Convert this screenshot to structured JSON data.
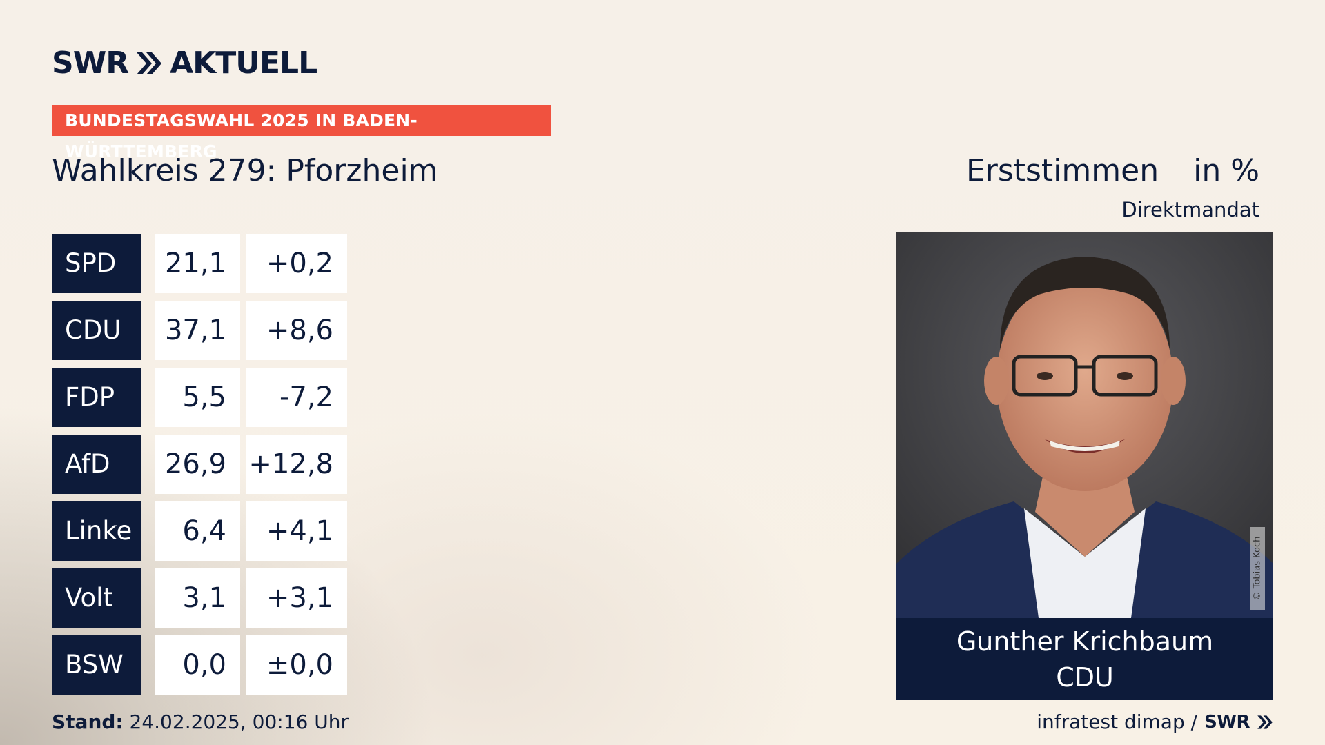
{
  "brand": {
    "logo_left": "SWR",
    "logo_right": "AKTUELL",
    "footer_logo": "SWR"
  },
  "banner": "BUNDESTAGSWAHL 2025 IN BADEN-WÜRTTEMBERG",
  "wahlkreis": "Wahlkreis 279: Pforzheim",
  "header_right": {
    "label": "Erststimmen",
    "unit": "in %",
    "sub": "Direktmandat"
  },
  "results": [
    {
      "party": "SPD",
      "value": "21,1",
      "diff": "+0,2"
    },
    {
      "party": "CDU",
      "value": "37,1",
      "diff": "+8,6"
    },
    {
      "party": "FDP",
      "value": "5,5",
      "diff": "-7,2"
    },
    {
      "party": "AfD",
      "value": "26,9",
      "diff": "+12,8"
    },
    {
      "party": "Linke",
      "value": "6,4",
      "diff": "+4,1"
    },
    {
      "party": "Volt",
      "value": "3,1",
      "diff": "+3,1"
    },
    {
      "party": "BSW",
      "value": "0,0",
      "diff": "±0,0"
    }
  ],
  "winner": {
    "name": "Gunther Krichbaum",
    "party": "CDU",
    "photo_credit": "© Tobias Koch"
  },
  "footer": {
    "stand_label": "Stand:",
    "stand_value": "24.02.2025, 00:16 Uhr",
    "source": "infratest dimap /"
  },
  "colors": {
    "navy": "#0d1b3a",
    "banner_red": "#f0523f",
    "background": "#f6f0e8"
  }
}
